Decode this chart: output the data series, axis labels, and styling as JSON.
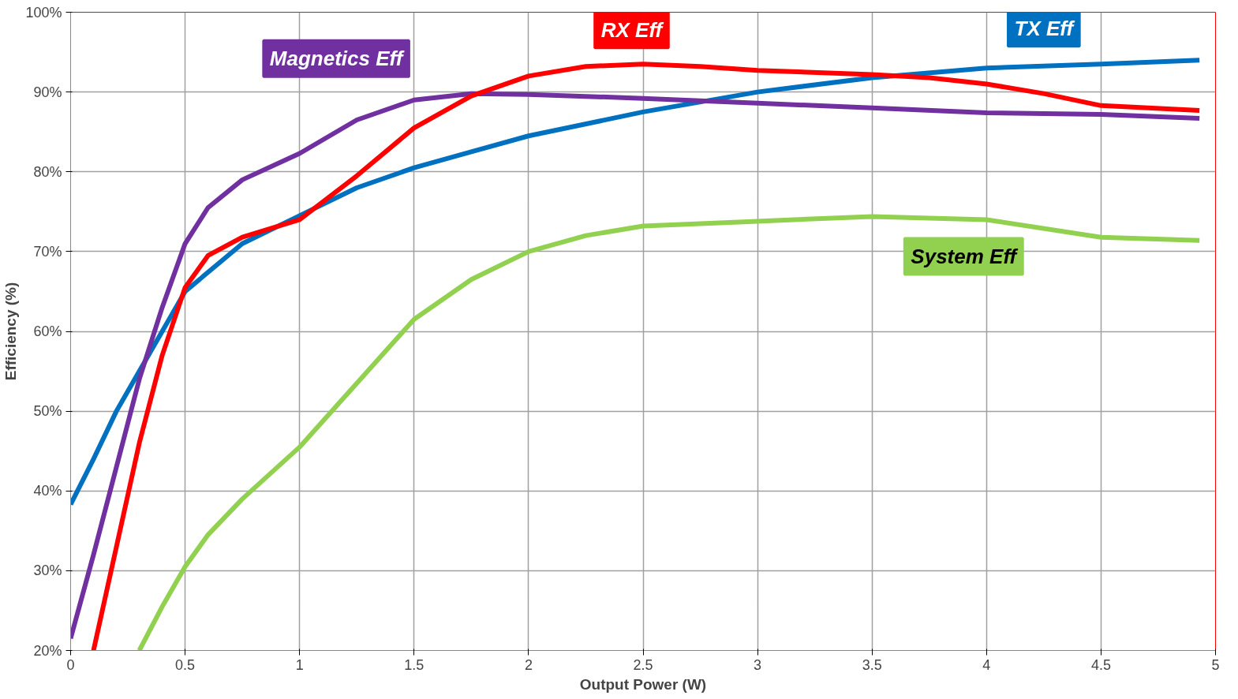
{
  "chart_data": {
    "type": "line",
    "xlabel": "Output Power (W)",
    "ylabel": "Efficiency (%)",
    "xlim": [
      0,
      5
    ],
    "ylim": [
      20,
      100
    ],
    "xticks": [
      0,
      0.5,
      1,
      1.5,
      2,
      2.5,
      3,
      3.5,
      4,
      4.5,
      5
    ],
    "yticks": [
      {
        "value": 20,
        "label": "20%"
      },
      {
        "value": 30,
        "label": "30%"
      },
      {
        "value": 40,
        "label": "40%"
      },
      {
        "value": 50,
        "label": "50%"
      },
      {
        "value": 60,
        "label": "60%"
      },
      {
        "value": 70,
        "label": "70%"
      },
      {
        "value": 80,
        "label": "80%"
      },
      {
        "value": 90,
        "label": "90%"
      },
      {
        "value": 100,
        "label": "100%"
      }
    ],
    "grid": true,
    "marker": "none",
    "line_style": "solid",
    "series": [
      {
        "name": "TX Eff",
        "color": "#0070c0",
        "x": [
          0,
          0.1,
          0.2,
          0.3,
          0.4,
          0.5,
          0.75,
          1.0,
          1.25,
          1.5,
          1.75,
          2,
          2.5,
          3,
          3.5,
          4,
          4.5,
          4.93
        ],
        "values": [
          38.3,
          44,
          50,
          55,
          60,
          65,
          71,
          74.5,
          78,
          80.5,
          82.5,
          84.5,
          87.5,
          90,
          91.8,
          93,
          93.5,
          94
        ]
      },
      {
        "name": "Magnetics Eff",
        "color": "#7030a0",
        "x": [
          0,
          0.1,
          0.2,
          0.3,
          0.4,
          0.5,
          0.6,
          0.75,
          1.0,
          1.25,
          1.5,
          1.75,
          2,
          2.5,
          3,
          3.5,
          4,
          4.5,
          4.93
        ],
        "values": [
          21.5,
          32,
          43,
          54,
          63,
          71,
          75.5,
          79,
          82.3,
          86.5,
          89,
          89.8,
          89.7,
          89.2,
          88.6,
          88,
          87.4,
          87.2,
          86.7
        ]
      },
      {
        "name": "RX Eff",
        "color": "#ff0000",
        "x": [
          0.1,
          0.2,
          0.3,
          0.4,
          0.5,
          0.6,
          0.75,
          1.0,
          1.25,
          1.5,
          1.75,
          2,
          2.25,
          2.5,
          2.75,
          3,
          3.5,
          3.75,
          4,
          4.25,
          4.5,
          4.93
        ],
        "values": [
          20,
          33,
          46,
          57,
          65.5,
          69.5,
          71.8,
          74,
          79.5,
          85.5,
          89.5,
          92,
          93.2,
          93.5,
          93.2,
          92.7,
          92.2,
          91.8,
          91,
          89.8,
          88.3,
          87.7
        ]
      },
      {
        "name": "System Eff",
        "color": "#92d050",
        "x": [
          0.3,
          0.4,
          0.5,
          0.6,
          0.75,
          1.0,
          1.25,
          1.5,
          1.75,
          2,
          2.25,
          2.5,
          3,
          3.5,
          4,
          4.5,
          4.93
        ],
        "values": [
          20,
          25.5,
          30.5,
          34.5,
          39,
          45.5,
          53.5,
          61.5,
          66.5,
          70,
          72,
          73.2,
          73.8,
          74.4,
          74,
          71.8,
          71.4
        ]
      }
    ]
  }
}
